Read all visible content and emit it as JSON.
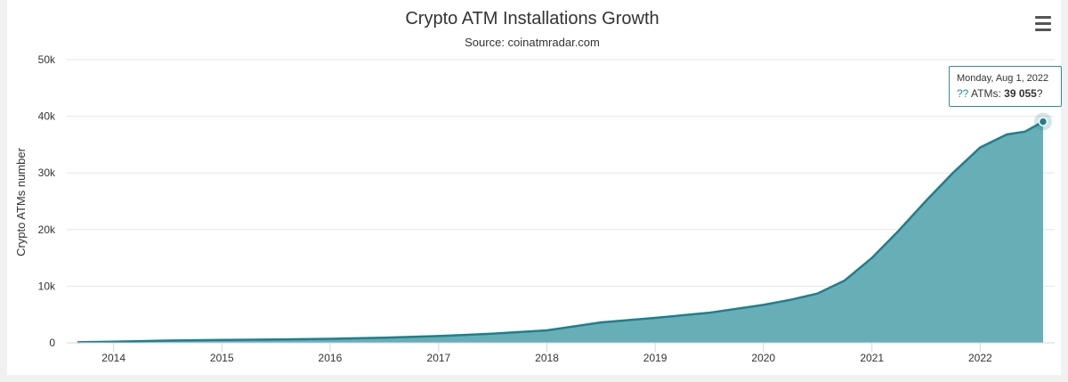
{
  "header": {
    "title": "Crypto ATM Installations Growth",
    "subtitle": "Source: coinatmradar.com",
    "menu_icon": "hamburger-menu-icon"
  },
  "tooltip": {
    "date": "Monday, Aug 1, 2022",
    "marker": "??",
    "label": "ATMs:",
    "value": "39 055",
    "trail": "?"
  },
  "colors": {
    "series": "#1f7f8c",
    "fill": "#68aeb7",
    "grid": "#e6e6e6"
  },
  "chart_data": {
    "type": "area",
    "title": "Crypto ATM Installations Growth",
    "subtitle": "Source: coinatmradar.com",
    "xlabel": "",
    "ylabel": "Crypto ATMs number",
    "ylim": [
      0,
      50000
    ],
    "yticks": [
      0,
      10000,
      20000,
      30000,
      40000,
      50000
    ],
    "ytick_labels": [
      "0",
      "10k",
      "20k",
      "30k",
      "40k",
      "50k"
    ],
    "xticks": [
      "2014",
      "2015",
      "2016",
      "2017",
      "2018",
      "2019",
      "2020",
      "2021",
      "2022"
    ],
    "xlim": [
      "2013-09-01",
      "2022-08-01"
    ],
    "grid": true,
    "legend": "none",
    "series": [
      {
        "x": [
          "2013-09-01",
          "2014-01-01",
          "2014-07-01",
          "2015-01-01",
          "2015-07-01",
          "2016-01-01",
          "2016-07-01",
          "2017-01-01",
          "2017-07-01",
          "2018-01-01",
          "2018-07-01",
          "2019-01-01",
          "2019-07-01",
          "2020-01-01",
          "2020-04-01",
          "2020-07-01",
          "2020-10-01",
          "2021-01-01",
          "2021-04-01",
          "2021-07-01",
          "2021-10-01",
          "2022-01-01",
          "2022-04-01",
          "2022-06-01",
          "2022-08-01"
        ],
        "values": [
          100,
          200,
          400,
          500,
          600,
          700,
          900,
          1200,
          1600,
          2200,
          3600,
          4400,
          5300,
          6700,
          7600,
          8700,
          11000,
          15000,
          19800,
          25000,
          30000,
          34500,
          36800,
          37300,
          39055
        ]
      }
    ]
  }
}
